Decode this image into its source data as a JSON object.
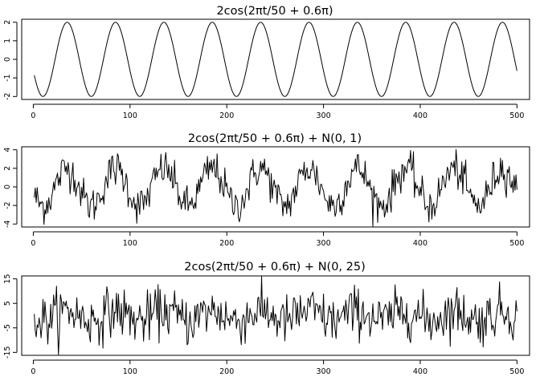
{
  "chart_data": [
    {
      "type": "line",
      "title": "2cos(2πt/50 + 0.6π)",
      "xlabel": "",
      "ylabel": "",
      "xlim": [
        1,
        500
      ],
      "ylim": [
        -2,
        2
      ],
      "xticks": [
        0,
        100,
        200,
        300,
        400,
        500
      ],
      "yticks": [
        -2,
        -1,
        0,
        1,
        2
      ],
      "amplitude": 2,
      "period": 50,
      "phase": "0.6π",
      "noise_sd": 0,
      "series": [
        {
          "n": 500
        }
      ]
    },
    {
      "type": "line",
      "title": "2cos(2πt/50 + 0.6π) + N(0, 1)",
      "xlabel": "",
      "ylabel": "",
      "xlim": [
        1,
        500
      ],
      "ylim": [
        -4,
        4
      ],
      "xticks": [
        0,
        100,
        200,
        300,
        400,
        500
      ],
      "yticks": [
        -4,
        -2,
        0,
        2,
        4
      ],
      "amplitude": 2,
      "period": 50,
      "phase": "0.6π",
      "noise_sd": 1,
      "series": [
        {
          "n": 500
        }
      ]
    },
    {
      "type": "line",
      "title": "2cos(2πt/50 + 0.6π) + N(0, 25)",
      "xlabel": "",
      "ylabel": "",
      "xlim": [
        1,
        500
      ],
      "ylim": [
        -15,
        15
      ],
      "xticks": [
        0,
        100,
        200,
        300,
        400,
        500
      ],
      "yticks": [
        -15,
        -5,
        5,
        15
      ],
      "amplitude": 2,
      "period": 50,
      "phase": "0.6π",
      "noise_sd": 5,
      "series": [
        {
          "n": 500
        }
      ]
    }
  ]
}
